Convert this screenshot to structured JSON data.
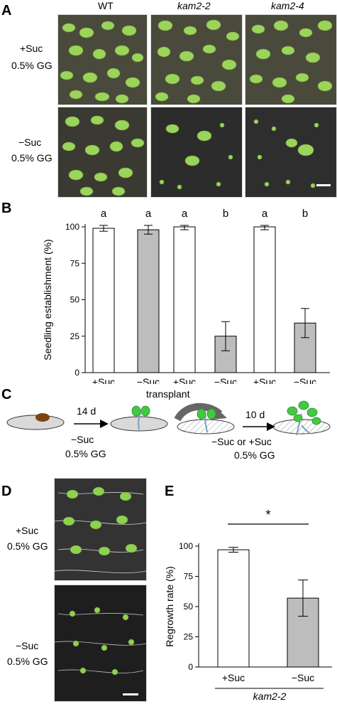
{
  "panels": {
    "a": "A",
    "b": "B",
    "c": "C",
    "d": "D",
    "e": "E"
  },
  "panelA": {
    "columns": [
      "WT",
      "kam2-2",
      "kam2-4"
    ],
    "rows": [
      {
        "cond": "+Suc",
        "medium": "0.5% GG"
      },
      {
        "cond": "−Suc",
        "medium": "0.5% GG"
      }
    ]
  },
  "panelC": {
    "step1_days": "14 d",
    "step1_cond": "−Suc",
    "step1_medium": "0.5% GG",
    "transfer_label": "transplant",
    "step2_days": "10 d",
    "step2_cond": "−Suc or +Suc",
    "step2_medium": "0.5% GG"
  },
  "panelD": {
    "rows": [
      {
        "cond": "+Suc",
        "medium": "0.5% GG"
      },
      {
        "cond": "−Suc",
        "medium": "0.5% GG"
      }
    ]
  },
  "colors": {
    "filled": "#bdbdbd",
    "open": "#ffffff",
    "photo_bg": "#2a2a2a",
    "leaf": "#8fd14f"
  },
  "chart_data": [
    {
      "id": "B",
      "type": "bar",
      "ylabel": "Seedling establishment (%)",
      "ylim": [
        0,
        100
      ],
      "yticks": [
        0,
        25,
        50,
        75,
        100
      ],
      "categories": [
        "+Suc",
        "−Suc",
        "+Suc",
        "−Suc",
        "+Suc",
        "−Suc"
      ],
      "values": [
        99,
        98,
        100,
        25,
        100,
        34
      ],
      "errors": [
        2,
        3,
        2,
        10,
        2,
        10
      ],
      "fills": [
        "open",
        "filled",
        "open",
        "filled",
        "open",
        "filled"
      ],
      "letters": [
        "a",
        "a",
        "a",
        "b",
        "a",
        "b"
      ],
      "groups": [
        {
          "label": "WT",
          "italic": false,
          "span": [
            0,
            1
          ]
        },
        {
          "label": "kam2-2",
          "italic": true,
          "span": [
            2,
            3
          ]
        },
        {
          "label": "kam2-4",
          "italic": true,
          "span": [
            4,
            5
          ]
        }
      ]
    },
    {
      "id": "E",
      "type": "bar",
      "ylabel": "Regrowth rate (%)",
      "ylim": [
        0,
        100
      ],
      "yticks": [
        0,
        25,
        50,
        75,
        100
      ],
      "categories": [
        "+Suc",
        "−Suc"
      ],
      "values": [
        97,
        57
      ],
      "errors": [
        2,
        15
      ],
      "fills": [
        "open",
        "filled"
      ],
      "significance": "*",
      "group_label": "kam2-2"
    }
  ]
}
